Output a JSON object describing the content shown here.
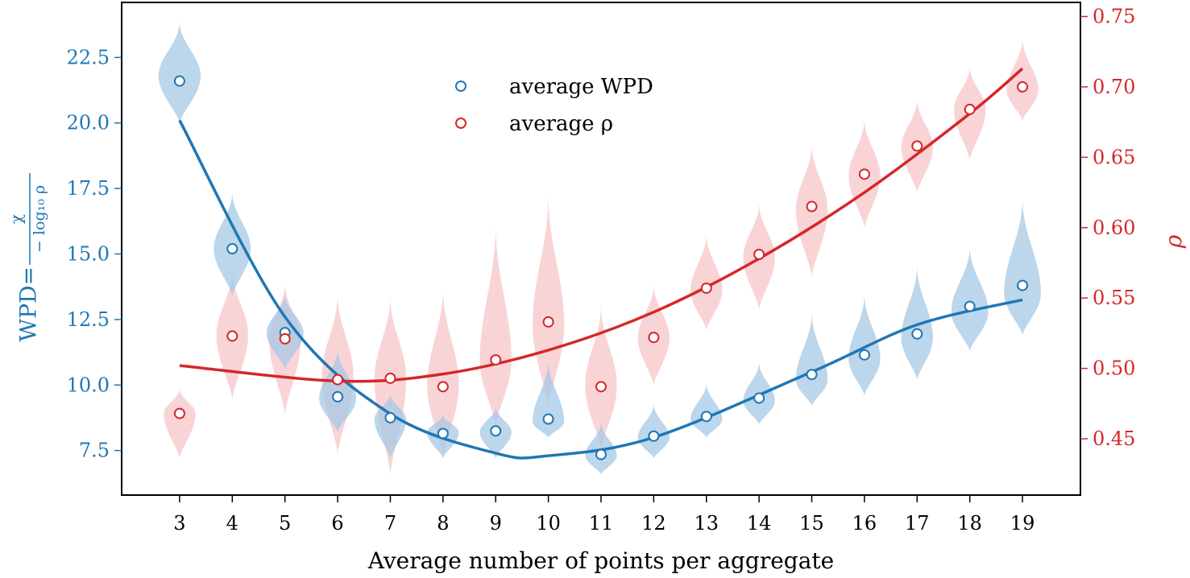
{
  "colors": {
    "wpd": "#1f77b4",
    "wpd_violin": "#a6c8e6",
    "rho": "#d62728",
    "rho_violin": "#f7c9cc",
    "axis": "#000000"
  },
  "chart_data": {
    "type": "violin-scatter-line",
    "x": [
      3,
      4,
      5,
      6,
      7,
      8,
      9,
      10,
      11,
      12,
      13,
      14,
      15,
      16,
      17,
      18,
      19
    ],
    "xlabel": "Average number of points per aggregate",
    "xlim": [
      1.9,
      20.1
    ],
    "y_left": {
      "label_main": "WPD=",
      "label_frac_num": "χ",
      "label_frac_den": "− log₁₀ ρ",
      "ylim": [
        5.8,
        24.6
      ],
      "ticks": [
        "7.5",
        "10.0",
        "12.5",
        "15.0",
        "17.5",
        "20.0",
        "22.5"
      ],
      "tick_values": [
        7.5,
        10.0,
        12.5,
        15.0,
        17.5,
        20.0,
        22.5
      ]
    },
    "y_right": {
      "label": "ρ",
      "ylim": [
        0.41,
        0.76
      ],
      "ticks": [
        "0.45",
        "0.50",
        "0.55",
        "0.60",
        "0.65",
        "0.70",
        "0.75"
      ],
      "tick_values": [
        0.45,
        0.5,
        0.55,
        0.6,
        0.65,
        0.7,
        0.75
      ]
    },
    "legend": {
      "position": "top-center",
      "entries": [
        {
          "key": "wpd",
          "label": "average WPD"
        },
        {
          "key": "rho",
          "label": "average ρ"
        }
      ]
    },
    "series": [
      {
        "key": "wpd",
        "axis": "left",
        "means": [
          21.6,
          15.2,
          12.0,
          9.55,
          8.75,
          8.15,
          8.25,
          8.7,
          7.35,
          8.05,
          8.8,
          9.5,
          10.4,
          11.15,
          11.95,
          13.0,
          13.8
        ],
        "violins": [
          {
            "min": 20.0,
            "max": 23.9,
            "mode": 21.8,
            "width": 0.4
          },
          {
            "min": 13.4,
            "max": 17.4,
            "mode": 15.2,
            "width": 0.35
          },
          {
            "min": 10.6,
            "max": 13.5,
            "mode": 12.0,
            "width": 0.35
          },
          {
            "min": 8.2,
            "max": 11.4,
            "mode": 9.5,
            "width": 0.35
          },
          {
            "min": 7.2,
            "max": 9.7,
            "mode": 8.7,
            "width": 0.3
          },
          {
            "min": 7.2,
            "max": 8.9,
            "mode": 8.2,
            "width": 0.3
          },
          {
            "min": 7.2,
            "max": 9.2,
            "mode": 8.2,
            "width": 0.3
          },
          {
            "min": 8.0,
            "max": 11.0,
            "mode": 8.6,
            "width": 0.3
          },
          {
            "min": 6.6,
            "max": 8.6,
            "mode": 7.3,
            "width": 0.3
          },
          {
            "min": 7.2,
            "max": 9.3,
            "mode": 8.0,
            "width": 0.3
          },
          {
            "min": 8.0,
            "max": 10.1,
            "mode": 8.7,
            "width": 0.3
          },
          {
            "min": 8.5,
            "max": 10.9,
            "mode": 9.4,
            "width": 0.3
          },
          {
            "min": 9.2,
            "max": 12.8,
            "mode": 10.2,
            "width": 0.3
          },
          {
            "min": 9.6,
            "max": 13.5,
            "mode": 11.0,
            "width": 0.3
          },
          {
            "min": 10.2,
            "max": 14.6,
            "mode": 11.8,
            "width": 0.3
          },
          {
            "min": 11.3,
            "max": 15.3,
            "mode": 12.8,
            "width": 0.35
          },
          {
            "min": 11.9,
            "max": 17.2,
            "mode": 13.5,
            "width": 0.35
          }
        ],
        "fit": [
          [
            3,
            20.1
          ],
          [
            5,
            12.6
          ],
          [
            7,
            8.9
          ],
          [
            9,
            7.4
          ],
          [
            10,
            7.3
          ],
          [
            12,
            8.0
          ],
          [
            15,
            10.5
          ],
          [
            17,
            12.3
          ],
          [
            19,
            13.25
          ]
        ]
      },
      {
        "key": "rho",
        "axis": "right",
        "means": [
          0.468,
          0.523,
          0.521,
          0.492,
          0.493,
          0.487,
          0.506,
          0.533,
          0.487,
          0.522,
          0.557,
          0.581,
          0.615,
          0.638,
          0.658,
          0.684,
          0.7
        ],
        "violins": [
          {
            "min": 0.436,
            "max": 0.486,
            "mode": 0.468,
            "width": 0.3
          },
          {
            "min": 0.478,
            "max": 0.571,
            "mode": 0.524,
            "width": 0.3
          },
          {
            "min": 0.467,
            "max": 0.561,
            "mode": 0.521,
            "width": 0.3
          },
          {
            "min": 0.439,
            "max": 0.554,
            "mode": 0.495,
            "width": 0.3
          },
          {
            "min": 0.424,
            "max": 0.552,
            "mode": 0.493,
            "width": 0.3
          },
          {
            "min": 0.437,
            "max": 0.558,
            "mode": 0.488,
            "width": 0.3
          },
          {
            "min": 0.459,
            "max": 0.604,
            "mode": 0.506,
            "width": 0.3
          },
          {
            "min": 0.472,
            "max": 0.625,
            "mode": 0.531,
            "width": 0.3
          },
          {
            "min": 0.442,
            "max": 0.546,
            "mode": 0.488,
            "width": 0.3
          },
          {
            "min": 0.488,
            "max": 0.56,
            "mode": 0.522,
            "width": 0.3
          },
          {
            "min": 0.527,
            "max": 0.596,
            "mode": 0.556,
            "width": 0.3
          },
          {
            "min": 0.542,
            "max": 0.618,
            "mode": 0.579,
            "width": 0.3
          },
          {
            "min": 0.565,
            "max": 0.66,
            "mode": 0.613,
            "width": 0.3
          },
          {
            "min": 0.6,
            "max": 0.678,
            "mode": 0.637,
            "width": 0.3
          },
          {
            "min": 0.625,
            "max": 0.692,
            "mode": 0.657,
            "width": 0.3
          },
          {
            "min": 0.648,
            "max": 0.715,
            "mode": 0.684,
            "width": 0.3
          },
          {
            "min": 0.676,
            "max": 0.735,
            "mode": 0.698,
            "width": 0.3
          }
        ],
        "fit": [
          [
            3,
            0.502
          ],
          [
            6,
            0.491
          ],
          [
            8,
            0.496
          ],
          [
            10,
            0.513
          ],
          [
            12,
            0.54
          ],
          [
            14,
            0.578
          ],
          [
            16,
            0.625
          ],
          [
            18,
            0.681
          ],
          [
            19,
            0.713
          ]
        ]
      }
    ]
  }
}
